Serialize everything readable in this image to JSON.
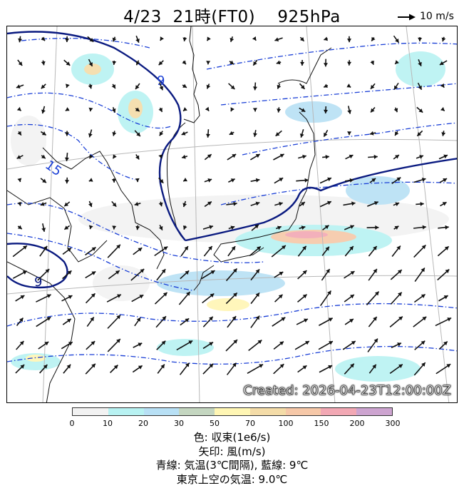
{
  "title": {
    "date": "4/23",
    "time": "21時(FT0)",
    "level": "925hPa"
  },
  "scale": {
    "label": "10 m/s"
  },
  "created": "Created: 2026-04-23T12:00:00Z",
  "contour_labels": [
    {
      "id": "label-north",
      "text": "9"
    },
    {
      "id": "label-west",
      "text": "15"
    },
    {
      "id": "label-southwest",
      "text": "9"
    }
  ],
  "colorbar": {
    "colors": [
      "#f2f2f2",
      "#b8f2f2",
      "#b8e0f5",
      "#c4d6c0",
      "#fff6b4",
      "#f4dca8",
      "#f6c8a8",
      "#f2a8b4",
      "#cda4d0"
    ],
    "ticks": [
      "0",
      "10",
      "20",
      "30",
      "50",
      "70",
      "100",
      "150",
      "200",
      "300"
    ]
  },
  "legend": {
    "line1": "色: 収束(1e6/s)",
    "line2": "矢印: 風(m/s)",
    "line3": "青線: 気温(3℃間隔), 藍線: 9℃",
    "line4": "東京上空の気温: 9.0℃"
  }
}
